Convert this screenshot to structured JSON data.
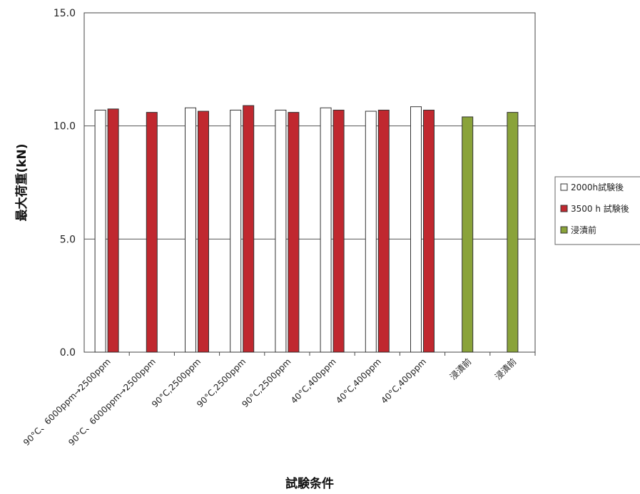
{
  "chart_data": {
    "type": "bar",
    "xlabel": "試験条件",
    "ylabel": "最大荷重(kN)",
    "ylim": [
      0,
      15
    ],
    "yticks": [
      "0.0",
      "5.0",
      "10.0",
      "15.0"
    ],
    "ytick_values": [
      0,
      5,
      10,
      15
    ],
    "grid": true,
    "legend_position": "right",
    "categories": [
      "90°C、6000ppm→2500ppm",
      "90°C、6000ppm→2500ppm",
      "90°C,2500ppm",
      "90°C,2500ppm",
      "90°C,2500ppm",
      "40°C,400ppm",
      "40°C,400ppm",
      "40°C,400ppm",
      "浸漬前",
      "浸漬前"
    ],
    "series": [
      {
        "name": "2000h試験後",
        "color": "#ffffff",
        "values": [
          10.7,
          null,
          10.8,
          10.7,
          10.7,
          10.8,
          10.65,
          10.85,
          null,
          null
        ]
      },
      {
        "name": "3500 h 試験後",
        "color": "#c0282f",
        "values": [
          10.75,
          10.6,
          10.65,
          10.9,
          10.6,
          10.7,
          10.7,
          10.7,
          null,
          null
        ]
      },
      {
        "name": "浸漬前",
        "color": "#8aa33a",
        "values": [
          null,
          null,
          null,
          null,
          null,
          null,
          null,
          null,
          10.4,
          10.6
        ]
      }
    ]
  }
}
